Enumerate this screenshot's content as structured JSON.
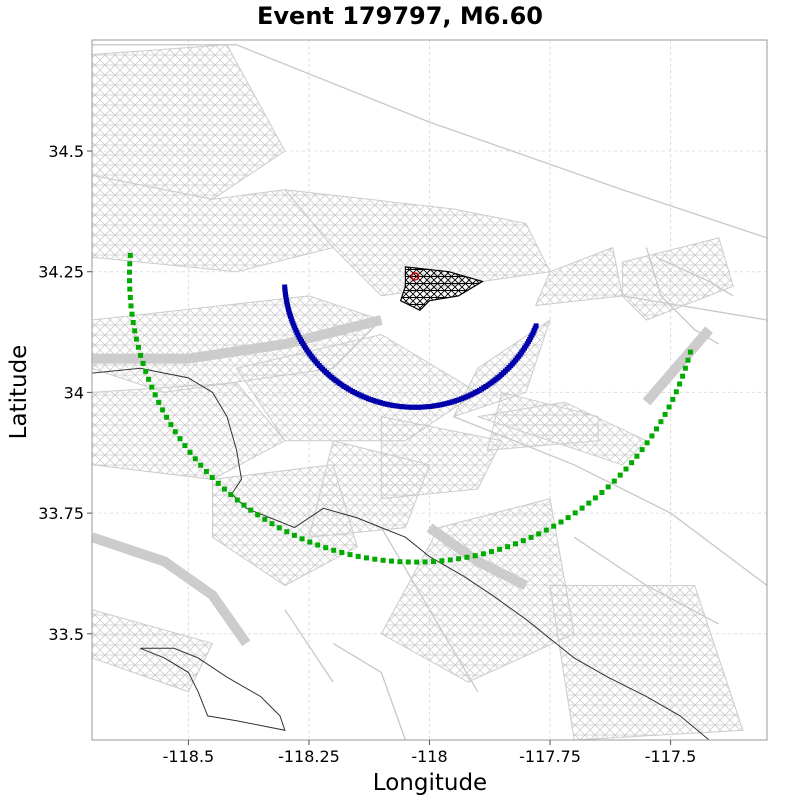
{
  "chart_data": {
    "type": "scatter",
    "title": "Event 179797, M6.60",
    "xlabel": "Longitude",
    "ylabel": "Latitude",
    "xlim": [
      -118.7,
      -117.3
    ],
    "ylim": [
      33.28,
      34.73
    ],
    "x_ticks": [
      -118.5,
      -118.25,
      -118,
      -117.75,
      -117.5
    ],
    "x_tick_labels": [
      "-118.5",
      "-118.25",
      "-118",
      "-117.75",
      "-117.5"
    ],
    "y_ticks": [
      33.5,
      33.75,
      34,
      34.25,
      34.5
    ],
    "y_tick_labels": [
      "33.5",
      "33.75",
      "34",
      "34.25",
      "34.5"
    ],
    "grid": true,
    "colors": {
      "fault_mesh": "#cccccc",
      "rupture": "#000000",
      "hypocenter": "#cc0000",
      "inner_ring": "#0000aa",
      "outer_ring": "#00aa00",
      "coastline": "#333333",
      "roads": "#c8c8c8",
      "grid": "#dddddd"
    },
    "hypocenter": {
      "lon": -118.03,
      "lat": 34.24
    },
    "inner_ring": {
      "center": {
        "lon": -118.03,
        "lat": 34.24
      },
      "radius_deg": 0.26,
      "arc_start_lon": -118.28,
      "arc_start_lat": 34.22,
      "arc_end_lon": -117.76,
      "arc_end_lat": 34.13
    },
    "outer_ring": {
      "center": {
        "lon": -118.03,
        "lat": 34.24
      },
      "radius_deg": 0.53,
      "arc_start_lon": -118.57,
      "arc_start_lat": 34.28,
      "arc_end_lon": -117.41,
      "arc_end_lat": 34.07
    },
    "fault_patches": [
      [
        [
          -118.7,
          34.7
        ],
        [
          -118.42,
          34.72
        ],
        [
          -118.3,
          34.5
        ],
        [
          -118.45,
          34.4
        ],
        [
          -118.7,
          34.45
        ]
      ],
      [
        [
          -118.7,
          34.45
        ],
        [
          -118.45,
          34.4
        ],
        [
          -118.3,
          34.42
        ],
        [
          -118.2,
          34.3
        ],
        [
          -118.4,
          34.25
        ],
        [
          -118.7,
          34.28
        ]
      ],
      [
        [
          -118.3,
          34.42
        ],
        [
          -117.95,
          34.38
        ],
        [
          -117.8,
          34.35
        ],
        [
          -117.75,
          34.25
        ],
        [
          -118.1,
          34.2
        ],
        [
          -118.2,
          34.3
        ]
      ],
      [
        [
          -117.75,
          34.25
        ],
        [
          -117.62,
          34.3
        ],
        [
          -117.6,
          34.2
        ],
        [
          -117.78,
          34.18
        ]
      ],
      [
        [
          -117.6,
          34.27
        ],
        [
          -117.4,
          34.32
        ],
        [
          -117.37,
          34.22
        ],
        [
          -117.55,
          34.15
        ],
        [
          -117.6,
          34.2
        ]
      ],
      [
        [
          -118.7,
          34.15
        ],
        [
          -118.25,
          34.2
        ],
        [
          -118.1,
          34.15
        ],
        [
          -118.2,
          34.05
        ],
        [
          -118.55,
          34.0
        ],
        [
          -118.7,
          34.05
        ]
      ],
      [
        [
          -118.7,
          34.0
        ],
        [
          -118.4,
          34.02
        ],
        [
          -118.3,
          33.9
        ],
        [
          -118.45,
          33.82
        ],
        [
          -118.7,
          33.85
        ]
      ],
      [
        [
          -118.4,
          34.05
        ],
        [
          -118.1,
          34.12
        ],
        [
          -117.9,
          34.0
        ],
        [
          -118.05,
          33.9
        ],
        [
          -118.3,
          33.9
        ]
      ],
      [
        [
          -117.9,
          34.05
        ],
        [
          -117.75,
          34.15
        ],
        [
          -117.8,
          34.0
        ],
        [
          -117.95,
          33.95
        ]
      ],
      [
        [
          -117.85,
          34.0
        ],
        [
          -117.65,
          33.95
        ],
        [
          -117.65,
          33.9
        ],
        [
          -117.88,
          33.88
        ]
      ],
      [
        [
          -117.9,
          33.95
        ],
        [
          -117.6,
          33.85
        ],
        [
          -117.55,
          33.9
        ],
        [
          -117.72,
          33.98
        ]
      ],
      [
        [
          -118.1,
          33.95
        ],
        [
          -117.85,
          33.9
        ],
        [
          -117.9,
          33.8
        ],
        [
          -118.1,
          33.78
        ]
      ],
      [
        [
          -118.2,
          33.9
        ],
        [
          -118.0,
          33.85
        ],
        [
          -118.05,
          33.72
        ],
        [
          -118.25,
          33.7
        ]
      ],
      [
        [
          -118.45,
          33.82
        ],
        [
          -118.2,
          33.85
        ],
        [
          -118.15,
          33.68
        ],
        [
          -118.3,
          33.6
        ],
        [
          -118.45,
          33.7
        ]
      ],
      [
        [
          -117.98,
          33.72
        ],
        [
          -117.75,
          33.78
        ],
        [
          -117.7,
          33.5
        ],
        [
          -117.92,
          33.4
        ],
        [
          -118.1,
          33.5
        ]
      ],
      [
        [
          -117.75,
          33.6
        ],
        [
          -117.45,
          33.6
        ],
        [
          -117.35,
          33.3
        ],
        [
          -117.7,
          33.28
        ]
      ],
      [
        [
          -118.7,
          33.55
        ],
        [
          -118.45,
          33.48
        ],
        [
          -118.5,
          33.38
        ],
        [
          -118.7,
          33.45
        ]
      ]
    ],
    "fault_strips": [
      [
        [
          -118.7,
          34.07
        ],
        [
          -118.5,
          34.07
        ],
        [
          -118.3,
          34.1
        ],
        [
          -118.1,
          34.15
        ]
      ],
      [
        [
          -118.7,
          33.7
        ],
        [
          -118.55,
          33.65
        ],
        [
          -118.45,
          33.58
        ],
        [
          -118.38,
          33.48
        ]
      ],
      [
        [
          -117.55,
          33.98
        ],
        [
          -117.42,
          34.13
        ]
      ],
      [
        [
          -118.0,
          33.72
        ],
        [
          -117.9,
          33.65
        ],
        [
          -117.8,
          33.6
        ]
      ]
    ],
    "rupture_patch": [
      [
        -118.05,
        34.26
      ],
      [
        -117.96,
        34.25
      ],
      [
        -117.89,
        34.23
      ],
      [
        -117.94,
        34.2
      ],
      [
        -118.0,
        34.19
      ],
      [
        -118.02,
        34.17
      ],
      [
        -118.06,
        34.19
      ],
      [
        -118.05,
        34.22
      ]
    ],
    "coastline": [
      [
        -118.7,
        34.04
      ],
      [
        -118.6,
        34.05
      ],
      [
        -118.55,
        34.04
      ],
      [
        -118.5,
        34.03
      ],
      [
        -118.45,
        34.0
      ],
      [
        -118.42,
        33.95
      ],
      [
        -118.4,
        33.88
      ],
      [
        -118.39,
        33.82
      ],
      [
        -118.41,
        33.79
      ],
      [
        -118.38,
        33.76
      ],
      [
        -118.33,
        33.74
      ],
      [
        -118.28,
        33.72
      ],
      [
        -118.22,
        33.76
      ],
      [
        -118.15,
        33.74
      ],
      [
        -118.1,
        33.72
      ],
      [
        -118.05,
        33.7
      ],
      [
        -118.0,
        33.66
      ],
      [
        -117.93,
        33.62
      ],
      [
        -117.87,
        33.58
      ],
      [
        -117.8,
        33.53
      ],
      [
        -117.75,
        33.49
      ],
      [
        -117.7,
        33.45
      ],
      [
        -117.63,
        33.41
      ],
      [
        -117.55,
        33.37
      ],
      [
        -117.48,
        33.33
      ],
      [
        -117.42,
        33.28
      ]
    ],
    "island": [
      [
        -118.6,
        33.47
      ],
      [
        -118.55,
        33.45
      ],
      [
        -118.5,
        33.42
      ],
      [
        -118.48,
        33.38
      ],
      [
        -118.46,
        33.33
      ],
      [
        -118.4,
        33.32
      ],
      [
        -118.35,
        33.31
      ],
      [
        -118.3,
        33.3
      ],
      [
        -118.31,
        33.33
      ],
      [
        -118.35,
        33.37
      ],
      [
        -118.42,
        33.41
      ],
      [
        -118.48,
        33.45
      ],
      [
        -118.53,
        33.47
      ],
      [
        -118.6,
        33.47
      ]
    ],
    "roads": [
      [
        [
          -118.7,
          34.72
        ],
        [
          -118.4,
          34.72
        ],
        [
          -118.0,
          34.56
        ],
        [
          -117.6,
          34.42
        ],
        [
          -117.3,
          34.32
        ]
      ],
      [
        [
          -117.53,
          34.28
        ],
        [
          -117.42,
          34.23
        ],
        [
          -117.37,
          34.2
        ]
      ],
      [
        [
          -117.55,
          34.3
        ],
        [
          -117.52,
          34.2
        ],
        [
          -117.45,
          34.13
        ],
        [
          -117.4,
          34.1
        ]
      ],
      [
        [
          -117.6,
          34.2
        ],
        [
          -117.3,
          34.15
        ]
      ],
      [
        [
          -117.95,
          33.95
        ],
        [
          -117.7,
          33.85
        ],
        [
          -117.5,
          33.75
        ],
        [
          -117.3,
          33.6
        ]
      ],
      [
        [
          -118.1,
          33.72
        ],
        [
          -118.0,
          33.55
        ],
        [
          -117.9,
          33.38
        ]
      ],
      [
        [
          -118.2,
          33.48
        ],
        [
          -118.1,
          33.42
        ],
        [
          -118.05,
          33.28
        ]
      ],
      [
        [
          -118.3,
          33.55
        ],
        [
          -118.2,
          33.4
        ]
      ],
      [
        [
          -117.7,
          33.7
        ],
        [
          -117.55,
          33.6
        ],
        [
          -117.4,
          33.52
        ]
      ]
    ]
  }
}
